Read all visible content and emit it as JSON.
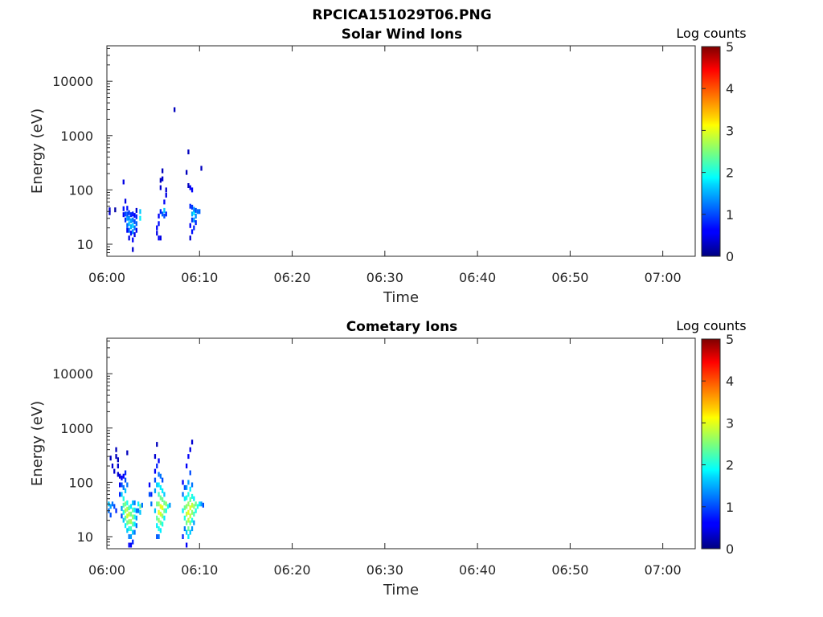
{
  "figure_title": "RPCICA151029T06.PNG",
  "chart_data": [
    {
      "type": "heatmap",
      "title": "Solar Wind Ions",
      "xlabel": "Time",
      "ylabel": "Energy (eV)",
      "x_ticks": [
        "06:00",
        "06:10",
        "06:20",
        "06:30",
        "06:40",
        "06:50",
        "07:00"
      ],
      "x_range_minutes": [
        0,
        63.5
      ],
      "y_ticks": [
        "10",
        "100",
        "1000",
        "10000"
      ],
      "y_scale": "log",
      "y_range": [
        6,
        45000
      ],
      "colorbar": {
        "title": "Log counts",
        "ticks": [
          "0",
          "1",
          "2",
          "3",
          "4",
          "5"
        ],
        "range": [
          0,
          5
        ],
        "colormap": "jet"
      },
      "cells": [
        [
          0.3,
          38,
          0.4
        ],
        [
          0.3,
          43,
          0.4
        ],
        [
          0.9,
          43,
          0.2
        ],
        [
          1.8,
          35,
          0.6
        ],
        [
          1.8,
          45,
          0.7
        ],
        [
          1.8,
          140,
          0.5
        ],
        [
          2.0,
          28,
          0.8
        ],
        [
          2.0,
          36,
          1.0
        ],
        [
          2.0,
          62,
          0.5
        ],
        [
          2.2,
          18,
          0.6
        ],
        [
          2.2,
          22,
          1.1
        ],
        [
          2.2,
          30,
          1.4
        ],
        [
          2.2,
          36,
          1.0
        ],
        [
          2.2,
          46,
          0.7
        ],
        [
          2.4,
          13,
          0.5
        ],
        [
          2.4,
          18,
          1.2
        ],
        [
          2.4,
          24,
          1.6
        ],
        [
          2.4,
          30,
          1.3
        ],
        [
          2.4,
          38,
          0.9
        ],
        [
          2.6,
          16,
          0.7
        ],
        [
          2.6,
          21,
          1.5
        ],
        [
          2.6,
          27,
          1.4
        ],
        [
          2.6,
          35,
          0.8
        ],
        [
          2.8,
          8,
          0.4
        ],
        [
          2.8,
          12,
          0.6
        ],
        [
          2.8,
          17,
          1.3
        ],
        [
          2.8,
          22,
          1.7
        ],
        [
          2.8,
          28,
          1.2
        ],
        [
          2.8,
          36,
          0.7
        ],
        [
          3.0,
          15,
          0.5
        ],
        [
          3.0,
          20,
          1.2
        ],
        [
          3.0,
          26,
          1.0
        ],
        [
          3.0,
          34,
          0.6
        ],
        [
          3.2,
          18,
          0.6
        ],
        [
          3.2,
          24,
          1.1
        ],
        [
          3.2,
          32,
          0.8
        ],
        [
          3.2,
          42,
          0.4
        ],
        [
          3.6,
          30,
          1.8
        ],
        [
          3.6,
          40,
          1.6
        ],
        [
          5.4,
          16,
          0.5
        ],
        [
          5.4,
          20,
          0.6
        ],
        [
          5.6,
          13,
          0.6
        ],
        [
          5.6,
          24,
          0.7
        ],
        [
          5.6,
          33,
          0.6
        ],
        [
          5.8,
          13,
          0.5
        ],
        [
          5.8,
          40,
          0.8
        ],
        [
          5.8,
          110,
          0.4
        ],
        [
          5.8,
          150,
          0.3
        ],
        [
          6.0,
          36,
          1.1
        ],
        [
          6.0,
          160,
          0.4
        ],
        [
          6.0,
          225,
          0.3
        ],
        [
          6.2,
          42,
          1.6
        ],
        [
          6.2,
          33,
          1.0
        ],
        [
          6.2,
          60,
          0.6
        ],
        [
          6.4,
          36,
          0.8
        ],
        [
          6.4,
          80,
          0.5
        ],
        [
          6.4,
          100,
          0.4
        ],
        [
          7.3,
          3000,
          0.3
        ],
        [
          8.6,
          210,
          0.3
        ],
        [
          8.8,
          120,
          0.3
        ],
        [
          8.8,
          500,
          0.3
        ],
        [
          9.0,
          13,
          0.4
        ],
        [
          9.0,
          22,
          0.6
        ],
        [
          9.0,
          50,
          0.8
        ],
        [
          9.0,
          110,
          0.6
        ],
        [
          9.2,
          17,
          0.7
        ],
        [
          9.2,
          28,
          0.9
        ],
        [
          9.2,
          36,
          1.5
        ],
        [
          9.2,
          48,
          0.9
        ],
        [
          9.2,
          100,
          0.6
        ],
        [
          9.4,
          20,
          0.8
        ],
        [
          9.4,
          28,
          1.4
        ],
        [
          9.4,
          38,
          1.8
        ],
        [
          9.4,
          44,
          1.3
        ],
        [
          9.6,
          25,
          0.8
        ],
        [
          9.6,
          33,
          1.3
        ],
        [
          9.6,
          42,
          1.0
        ],
        [
          9.8,
          40,
          1.2
        ],
        [
          10.0,
          40,
          1.1
        ],
        [
          10.2,
          250,
          0.3
        ]
      ]
    },
    {
      "type": "heatmap",
      "title": "Cometary Ions",
      "xlabel": "Time",
      "ylabel": "Energy (eV)",
      "x_ticks": [
        "06:00",
        "06:10",
        "06:20",
        "06:30",
        "06:40",
        "06:50",
        "07:00"
      ],
      "x_range_minutes": [
        0,
        63.5
      ],
      "y_ticks": [
        "10",
        "100",
        "1000",
        "10000"
      ],
      "y_scale": "log",
      "y_range": [
        6,
        45000
      ],
      "colorbar": {
        "title": "Log counts",
        "ticks": [
          "0",
          "1",
          "2",
          "3",
          "4",
          "5"
        ],
        "range": [
          0,
          5
        ],
        "colormap": "jet"
      },
      "cells": [
        [
          0.2,
          30,
          1.2
        ],
        [
          0.2,
          40,
          1.6
        ],
        [
          0.4,
          25,
          1.0
        ],
        [
          0.4,
          36,
          1.4
        ],
        [
          0.4,
          280,
          0.3
        ],
        [
          0.6,
          40,
          1.2
        ],
        [
          0.6,
          200,
          0.4
        ],
        [
          0.8,
          36,
          1.0
        ],
        [
          0.8,
          160,
          0.4
        ],
        [
          1.0,
          30,
          0.8
        ],
        [
          1.0,
          300,
          0.3
        ],
        [
          1.0,
          400,
          0.3
        ],
        [
          1.2,
          140,
          0.4
        ],
        [
          1.2,
          200,
          0.4
        ],
        [
          1.2,
          260,
          0.3
        ],
        [
          1.4,
          60,
          0.8
        ],
        [
          1.4,
          90,
          0.6
        ],
        [
          1.4,
          130,
          0.5
        ],
        [
          1.6,
          24,
          1.0
        ],
        [
          1.6,
          33,
          1.4
        ],
        [
          1.6,
          90,
          1.0
        ],
        [
          1.6,
          120,
          0.6
        ],
        [
          1.6,
          60,
          1.6
        ],
        [
          1.8,
          20,
          1.6
        ],
        [
          1.8,
          28,
          2.0
        ],
        [
          1.8,
          38,
          2.3
        ],
        [
          1.8,
          50,
          2.0
        ],
        [
          1.8,
          80,
          1.2
        ],
        [
          1.8,
          130,
          0.6
        ],
        [
          2.0,
          16,
          1.8
        ],
        [
          2.0,
          22,
          2.3
        ],
        [
          2.0,
          30,
          2.7
        ],
        [
          2.0,
          40,
          2.5
        ],
        [
          2.0,
          70,
          1.6
        ],
        [
          2.0,
          110,
          1.0
        ],
        [
          2.0,
          150,
          0.8
        ],
        [
          2.2,
          13,
          1.6
        ],
        [
          2.2,
          18,
          2.4
        ],
        [
          2.2,
          24,
          2.9
        ],
        [
          2.2,
          32,
          2.7
        ],
        [
          2.2,
          42,
          2.0
        ],
        [
          2.2,
          90,
          1.2
        ],
        [
          2.2,
          350,
          0.3
        ],
        [
          2.4,
          7,
          0.6
        ],
        [
          2.4,
          10,
          1.2
        ],
        [
          2.4,
          14,
          2.0
        ],
        [
          2.4,
          19,
          2.6
        ],
        [
          2.4,
          26,
          2.8
        ],
        [
          2.4,
          34,
          2.2
        ],
        [
          2.6,
          7,
          0.6
        ],
        [
          2.6,
          10,
          1.4
        ],
        [
          2.6,
          14,
          2.2
        ],
        [
          2.6,
          19,
          2.7
        ],
        [
          2.6,
          26,
          2.4
        ],
        [
          2.6,
          36,
          1.8
        ],
        [
          2.8,
          8,
          0.8
        ],
        [
          2.8,
          12,
          1.6
        ],
        [
          2.8,
          17,
          2.3
        ],
        [
          2.8,
          23,
          2.6
        ],
        [
          2.8,
          31,
          2.3
        ],
        [
          2.8,
          42,
          1.6
        ],
        [
          3.0,
          12,
          1.2
        ],
        [
          3.0,
          17,
          1.8
        ],
        [
          3.0,
          23,
          2.0
        ],
        [
          3.0,
          31,
          1.8
        ],
        [
          3.0,
          42,
          1.2
        ],
        [
          3.2,
          16,
          1.2
        ],
        [
          3.2,
          22,
          1.4
        ],
        [
          3.2,
          30,
          1.2
        ],
        [
          3.4,
          30,
          1.2
        ],
        [
          3.4,
          40,
          1.8
        ],
        [
          3.6,
          36,
          2.4
        ],
        [
          3.6,
          28,
          1.6
        ],
        [
          3.8,
          38,
          1.2
        ],
        [
          4.6,
          60,
          1.0
        ],
        [
          4.6,
          90,
          0.6
        ],
        [
          4.8,
          40,
          1.2
        ],
        [
          4.8,
          60,
          0.8
        ],
        [
          5.2,
          30,
          1.6
        ],
        [
          5.2,
          70,
          1.4
        ],
        [
          5.2,
          110,
          1.0
        ],
        [
          5.2,
          160,
          0.6
        ],
        [
          5.2,
          300,
          0.4
        ],
        [
          5.4,
          10,
          1.0
        ],
        [
          5.4,
          16,
          1.8
        ],
        [
          5.4,
          22,
          2.3
        ],
        [
          5.4,
          40,
          2.4
        ],
        [
          5.4,
          90,
          1.6
        ],
        [
          5.4,
          200,
          0.8
        ],
        [
          5.4,
          500,
          0.3
        ],
        [
          5.6,
          10,
          1.2
        ],
        [
          5.6,
          14,
          2.0
        ],
        [
          5.6,
          20,
          2.6
        ],
        [
          5.6,
          28,
          3.0
        ],
        [
          5.6,
          40,
          2.6
        ],
        [
          5.6,
          60,
          2.2
        ],
        [
          5.6,
          90,
          1.8
        ],
        [
          5.6,
          140,
          1.2
        ],
        [
          5.6,
          250,
          0.6
        ],
        [
          5.8,
          13,
          1.8
        ],
        [
          5.8,
          18,
          2.4
        ],
        [
          5.8,
          26,
          2.9
        ],
        [
          5.8,
          36,
          3.0
        ],
        [
          5.8,
          52,
          2.4
        ],
        [
          5.8,
          80,
          1.8
        ],
        [
          5.8,
          130,
          1.2
        ],
        [
          6.0,
          17,
          2.0
        ],
        [
          6.0,
          24,
          2.6
        ],
        [
          6.0,
          34,
          3.0
        ],
        [
          6.0,
          48,
          2.4
        ],
        [
          6.0,
          70,
          1.8
        ],
        [
          6.0,
          110,
          1.0
        ],
        [
          6.2,
          22,
          1.8
        ],
        [
          6.2,
          30,
          2.4
        ],
        [
          6.2,
          42,
          2.4
        ],
        [
          6.2,
          60,
          1.6
        ],
        [
          6.4,
          30,
          2.0
        ],
        [
          6.4,
          40,
          2.6
        ],
        [
          6.6,
          36,
          2.0
        ],
        [
          6.8,
          38,
          1.4
        ],
        [
          8.2,
          10,
          0.8
        ],
        [
          8.2,
          30,
          1.8
        ],
        [
          8.2,
          60,
          1.2
        ],
        [
          8.2,
          100,
          0.6
        ],
        [
          8.4,
          14,
          1.2
        ],
        [
          8.4,
          22,
          2.0
        ],
        [
          8.4,
          34,
          2.4
        ],
        [
          8.4,
          50,
          1.8
        ],
        [
          8.4,
          80,
          1.0
        ],
        [
          8.6,
          7,
          0.6
        ],
        [
          8.6,
          12,
          1.6
        ],
        [
          8.6,
          18,
          2.4
        ],
        [
          8.6,
          26,
          2.8
        ],
        [
          8.6,
          36,
          2.6
        ],
        [
          8.6,
          52,
          2.0
        ],
        [
          8.6,
          80,
          1.4
        ],
        [
          8.6,
          200,
          0.6
        ],
        [
          8.8,
          10,
          1.8
        ],
        [
          8.8,
          14,
          2.4
        ],
        [
          8.8,
          20,
          2.8
        ],
        [
          8.8,
          28,
          3.0
        ],
        [
          8.8,
          40,
          2.6
        ],
        [
          8.8,
          60,
          2.0
        ],
        [
          8.8,
          100,
          1.4
        ],
        [
          8.8,
          300,
          0.6
        ],
        [
          9.0,
          12,
          1.6
        ],
        [
          9.0,
          18,
          2.4
        ],
        [
          9.0,
          24,
          2.8
        ],
        [
          9.0,
          34,
          3.0
        ],
        [
          9.0,
          48,
          2.4
        ],
        [
          9.0,
          75,
          1.8
        ],
        [
          9.0,
          150,
          1.0
        ],
        [
          9.0,
          400,
          0.5
        ],
        [
          9.2,
          14,
          1.4
        ],
        [
          9.2,
          20,
          2.0
        ],
        [
          9.2,
          28,
          2.6
        ],
        [
          9.2,
          38,
          2.8
        ],
        [
          9.2,
          55,
          2.0
        ],
        [
          9.2,
          90,
          1.2
        ],
        [
          9.2,
          550,
          0.4
        ],
        [
          9.4,
          18,
          1.4
        ],
        [
          9.4,
          26,
          2.2
        ],
        [
          9.4,
          36,
          2.6
        ],
        [
          9.4,
          50,
          1.8
        ],
        [
          9.6,
          30,
          2.0
        ],
        [
          9.6,
          40,
          2.4
        ],
        [
          9.8,
          36,
          2.0
        ],
        [
          10.0,
          40,
          1.8
        ],
        [
          10.2,
          40,
          1.4
        ],
        [
          10.4,
          38,
          1.0
        ]
      ]
    }
  ]
}
